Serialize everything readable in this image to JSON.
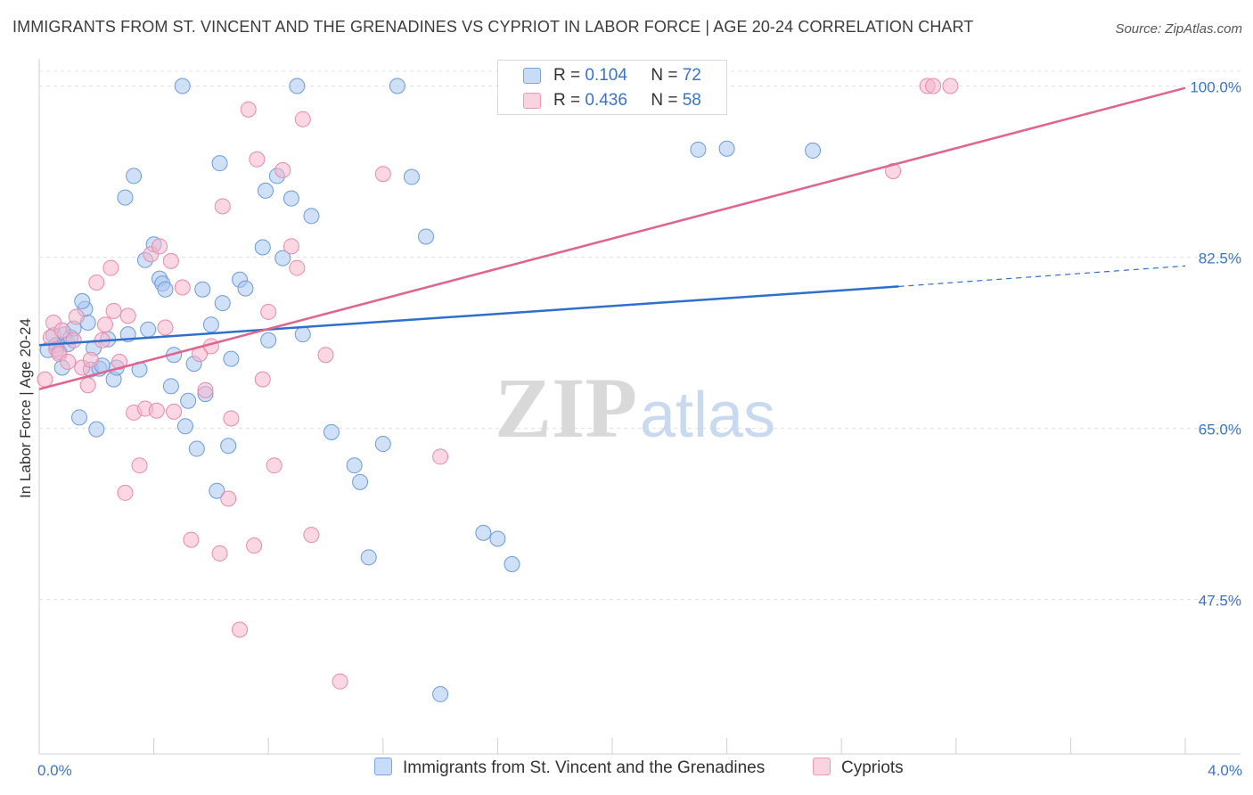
{
  "title": "IMMIGRANTS FROM ST. VINCENT AND THE GRENADINES VS CYPRIOT IN LABOR FORCE | AGE 20-24 CORRELATION CHART",
  "source": "Source: ZipAtlas.com",
  "watermark": {
    "zip": "ZIP",
    "atlas": "atlas"
  },
  "legend": {
    "rows": [
      {
        "r_label": "R =",
        "r_value": "0.104",
        "n_label": "N =",
        "n_value": "72",
        "color": "#a9c7f0"
      },
      {
        "r_label": "R =",
        "r_value": "0.436",
        "n_label": "N =",
        "n_value": "58",
        "color": "#f6b7cc"
      }
    ]
  },
  "bottom_legend": [
    {
      "label": "Immigrants from St. Vincent and the Grenadines",
      "color": "#a9c7f0"
    },
    {
      "label": "Cypriots",
      "color": "#f6b7cc"
    }
  ],
  "chart_data": {
    "type": "scatter",
    "title": "IMMIGRANTS FROM ST. VINCENT AND THE GRENADINES VS CYPRIOT IN LABOR FORCE | AGE 20-24 CORRELATION CHART",
    "xlabel": "",
    "ylabel": "In Labor Force | Age 20-24",
    "xlim": [
      0.0,
      4.0
    ],
    "ylim": [
      30.0,
      102.0
    ],
    "x_tick_labels": [
      {
        "value": 0.0,
        "label": "0.0%"
      },
      {
        "value": 4.0,
        "label": "4.0%"
      }
    ],
    "y_tick_labels": [
      {
        "value": 100.0,
        "label": "100.0%"
      },
      {
        "value": 82.5,
        "label": "82.5%"
      },
      {
        "value": 65.0,
        "label": "65.0%"
      },
      {
        "value": 47.5,
        "label": "47.5%"
      }
    ],
    "grid": true,
    "series": [
      {
        "name": "Immigrants from St. Vincent and the Grenadines",
        "color": "#6a9be0",
        "fill": "#a9c7f0",
        "trendline": {
          "x": [
            0.0,
            3.0
          ],
          "y": [
            73.5,
            79.5
          ],
          "dashed_to_x": 4.0,
          "dashed_to_y": 81.6,
          "color": "#2f6fcc"
        },
        "points": [
          [
            0.03,
            73.0
          ],
          [
            0.05,
            74.5
          ],
          [
            0.06,
            73.5
          ],
          [
            0.07,
            72.8
          ],
          [
            0.08,
            71.2
          ],
          [
            0.09,
            74.6
          ],
          [
            0.1,
            73.6
          ],
          [
            0.11,
            74.3
          ],
          [
            0.12,
            75.2
          ],
          [
            0.14,
            66.1
          ],
          [
            0.16,
            77.2
          ],
          [
            0.17,
            75.8
          ],
          [
            0.18,
            71.0
          ],
          [
            0.19,
            73.2
          ],
          [
            0.2,
            64.9
          ],
          [
            0.21,
            71.1
          ],
          [
            0.22,
            71.4
          ],
          [
            0.24,
            74.1
          ],
          [
            0.26,
            70.0
          ],
          [
            0.27,
            71.2
          ],
          [
            0.3,
            88.6
          ],
          [
            0.31,
            74.6
          ],
          [
            0.33,
            90.8
          ],
          [
            0.35,
            71.0
          ],
          [
            0.37,
            82.2
          ],
          [
            0.38,
            75.1
          ],
          [
            0.4,
            83.8
          ],
          [
            0.42,
            80.3
          ],
          [
            0.43,
            79.8
          ],
          [
            0.44,
            79.2
          ],
          [
            0.46,
            69.3
          ],
          [
            0.47,
            72.5
          ],
          [
            0.5,
            100.0
          ],
          [
            0.51,
            65.2
          ],
          [
            0.52,
            67.8
          ],
          [
            0.54,
            71.6
          ],
          [
            0.55,
            62.9
          ],
          [
            0.57,
            79.2
          ],
          [
            0.58,
            68.5
          ],
          [
            0.6,
            75.6
          ],
          [
            0.62,
            58.6
          ],
          [
            0.63,
            92.1
          ],
          [
            0.64,
            77.8
          ],
          [
            0.66,
            63.2
          ],
          [
            0.67,
            72.1
          ],
          [
            0.7,
            80.2
          ],
          [
            0.72,
            79.3
          ],
          [
            0.78,
            83.5
          ],
          [
            0.79,
            89.3
          ],
          [
            0.8,
            74.0
          ],
          [
            0.83,
            90.8
          ],
          [
            0.85,
            82.4
          ],
          [
            0.88,
            88.5
          ],
          [
            0.9,
            100.0
          ],
          [
            0.92,
            74.6
          ],
          [
            0.95,
            86.7
          ],
          [
            1.02,
            64.6
          ],
          [
            1.1,
            61.2
          ],
          [
            1.12,
            59.5
          ],
          [
            1.15,
            51.8
          ],
          [
            1.2,
            63.4
          ],
          [
            1.25,
            100.0
          ],
          [
            1.3,
            90.7
          ],
          [
            1.35,
            84.6
          ],
          [
            1.4,
            37.8
          ],
          [
            1.55,
            54.3
          ],
          [
            1.6,
            53.7
          ],
          [
            1.65,
            51.1
          ],
          [
            2.3,
            93.5
          ],
          [
            2.4,
            93.6
          ],
          [
            2.7,
            93.4
          ],
          [
            0.15,
            78.0
          ]
        ]
      },
      {
        "name": "Cypriots",
        "color": "#e88aa9",
        "fill": "#f6b7cc",
        "trendline": {
          "x": [
            0.0,
            4.0
          ],
          "y": [
            69.0,
            99.8
          ],
          "color": "#e0648e"
        },
        "points": [
          [
            0.02,
            70.0
          ],
          [
            0.04,
            74.3
          ],
          [
            0.05,
            75.8
          ],
          [
            0.06,
            73.1
          ],
          [
            0.07,
            72.6
          ],
          [
            0.08,
            75.0
          ],
          [
            0.1,
            71.8
          ],
          [
            0.12,
            74.0
          ],
          [
            0.13,
            76.4
          ],
          [
            0.15,
            71.2
          ],
          [
            0.17,
            69.4
          ],
          [
            0.18,
            72.0
          ],
          [
            0.2,
            79.9
          ],
          [
            0.22,
            74.0
          ],
          [
            0.23,
            75.6
          ],
          [
            0.25,
            81.4
          ],
          [
            0.26,
            77.0
          ],
          [
            0.28,
            71.8
          ],
          [
            0.3,
            58.4
          ],
          [
            0.31,
            76.5
          ],
          [
            0.33,
            66.6
          ],
          [
            0.35,
            61.2
          ],
          [
            0.37,
            67.0
          ],
          [
            0.39,
            82.8
          ],
          [
            0.41,
            66.8
          ],
          [
            0.42,
            83.6
          ],
          [
            0.44,
            75.3
          ],
          [
            0.46,
            82.1
          ],
          [
            0.47,
            66.7
          ],
          [
            0.5,
            79.4
          ],
          [
            0.53,
            53.6
          ],
          [
            0.56,
            72.6
          ],
          [
            0.58,
            68.9
          ],
          [
            0.6,
            73.4
          ],
          [
            0.63,
            52.2
          ],
          [
            0.64,
            87.7
          ],
          [
            0.66,
            57.8
          ],
          [
            0.67,
            66.0
          ],
          [
            0.7,
            44.4
          ],
          [
            0.73,
            97.6
          ],
          [
            0.75,
            53.0
          ],
          [
            0.76,
            92.5
          ],
          [
            0.78,
            70.0
          ],
          [
            0.8,
            76.9
          ],
          [
            0.82,
            61.2
          ],
          [
            0.85,
            91.4
          ],
          [
            0.88,
            83.6
          ],
          [
            0.9,
            81.4
          ],
          [
            0.92,
            96.6
          ],
          [
            0.95,
            54.1
          ],
          [
            1.0,
            72.5
          ],
          [
            1.05,
            39.1
          ],
          [
            1.2,
            91.0
          ],
          [
            1.4,
            62.1
          ],
          [
            2.98,
            91.3
          ],
          [
            3.1,
            100.0
          ],
          [
            3.12,
            100.0
          ],
          [
            3.18,
            100.0
          ]
        ]
      }
    ]
  }
}
